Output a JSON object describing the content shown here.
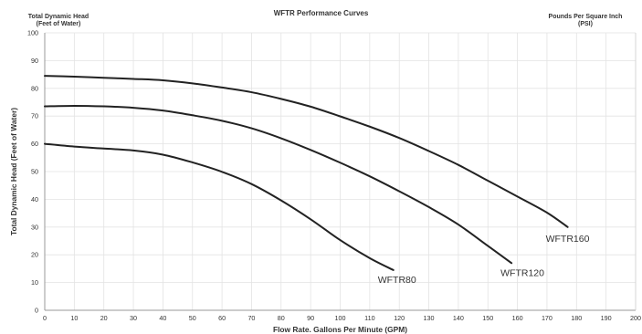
{
  "chart_data": {
    "type": "line",
    "title": "WFTR Performance Curves",
    "left_header": [
      "Total Dynamic Head",
      "(Feet of Water)"
    ],
    "right_header": [
      "Pounds Per Square Inch",
      "(PSI)"
    ],
    "xlabel": "Flow Rate. Gallons Per Minute (GPM)",
    "ylabel": "Total Dynamic Head (Feet of Water)",
    "xlim": [
      0,
      200
    ],
    "ylim": [
      0,
      100
    ],
    "xticks": [
      0,
      10,
      20,
      30,
      40,
      50,
      60,
      70,
      80,
      90,
      100,
      110,
      120,
      130,
      140,
      150,
      160,
      170,
      180,
      190,
      200
    ],
    "yticks": [
      0,
      10,
      20,
      30,
      40,
      50,
      60,
      70,
      80,
      90,
      100
    ],
    "grid": true,
    "series": [
      {
        "name": "WFTR160",
        "x": [
          0,
          10,
          20,
          30,
          40,
          50,
          60,
          70,
          80,
          90,
          100,
          110,
          120,
          130,
          140,
          150,
          160,
          170,
          177
        ],
        "y": [
          84.5,
          84.2,
          83.8,
          83.4,
          82.9,
          81.8,
          80.3,
          78.6,
          76.2,
          73.4,
          69.9,
          66.2,
          62.1,
          57.4,
          52.4,
          46.7,
          41.0,
          35.2,
          30.0
        ]
      },
      {
        "name": "WFTR120",
        "x": [
          0,
          10,
          20,
          30,
          40,
          50,
          60,
          70,
          80,
          90,
          100,
          110,
          120,
          130,
          140,
          150,
          158
        ],
        "y": [
          73.5,
          73.7,
          73.5,
          73.0,
          72.0,
          70.3,
          68.3,
          65.6,
          62.0,
          57.8,
          53.2,
          48.3,
          42.9,
          37.2,
          30.9,
          23.2,
          17.0
        ]
      },
      {
        "name": "WFTR80",
        "x": [
          0,
          10,
          20,
          30,
          40,
          50,
          60,
          70,
          80,
          90,
          100,
          110,
          118
        ],
        "y": [
          60.0,
          59.0,
          58.3,
          57.6,
          56.1,
          53.3,
          49.9,
          45.5,
          39.6,
          32.8,
          25.3,
          18.8,
          14.5
        ]
      }
    ]
  }
}
